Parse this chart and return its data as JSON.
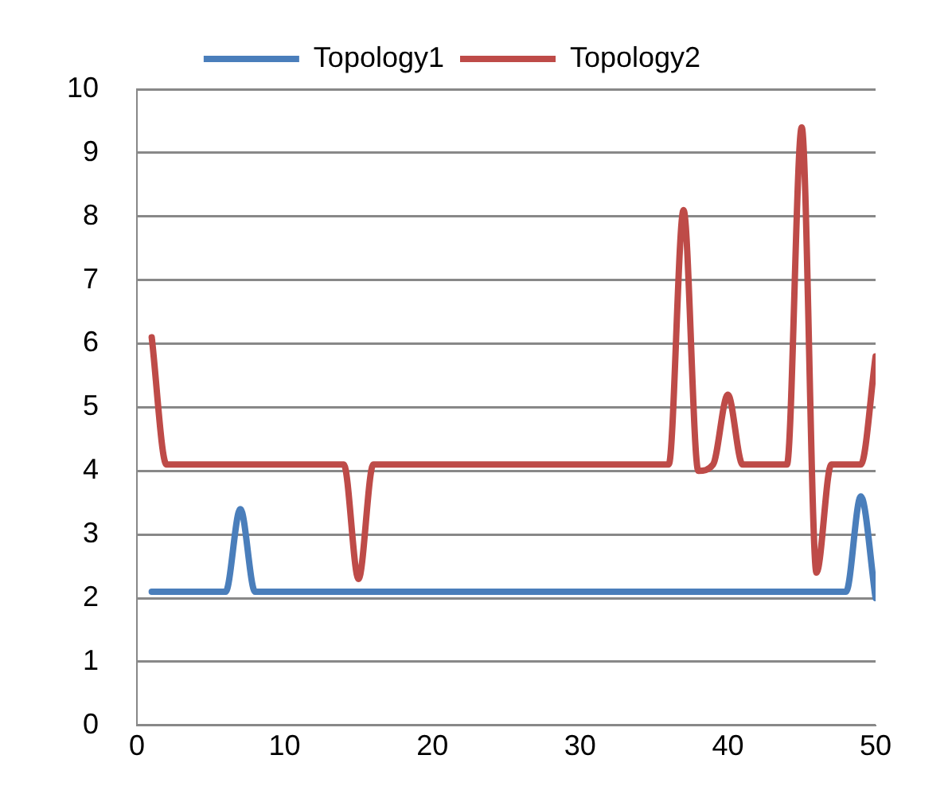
{
  "chart_data": {
    "type": "line",
    "x": [
      1,
      2,
      3,
      4,
      5,
      6,
      7,
      8,
      9,
      10,
      11,
      12,
      13,
      14,
      15,
      16,
      17,
      18,
      19,
      20,
      21,
      22,
      23,
      24,
      25,
      26,
      27,
      28,
      29,
      30,
      31,
      32,
      33,
      34,
      35,
      36,
      37,
      38,
      39,
      40,
      41,
      42,
      43,
      44,
      45,
      46,
      47,
      48,
      49,
      50
    ],
    "series": [
      {
        "name": "Topology1",
        "color": "#4a7ebb",
        "values": [
          2.1,
          2.1,
          2.1,
          2.1,
          2.1,
          2.1,
          3.4,
          2.1,
          2.1,
          2.1,
          2.1,
          2.1,
          2.1,
          2.1,
          2.1,
          2.1,
          2.1,
          2.1,
          2.1,
          2.1,
          2.1,
          2.1,
          2.1,
          2.1,
          2.1,
          2.1,
          2.1,
          2.1,
          2.1,
          2.1,
          2.1,
          2.1,
          2.1,
          2.1,
          2.1,
          2.1,
          2.1,
          2.1,
          2.1,
          2.1,
          2.1,
          2.1,
          2.1,
          2.1,
          2.1,
          2.1,
          2.1,
          2.1,
          3.6,
          2.0
        ]
      },
      {
        "name": "Topology2",
        "color": "#be4b48",
        "values": [
          6.1,
          4.1,
          4.1,
          4.1,
          4.1,
          4.1,
          4.1,
          4.1,
          4.1,
          4.1,
          4.1,
          4.1,
          4.1,
          4.1,
          2.3,
          4.1,
          4.1,
          4.1,
          4.1,
          4.1,
          4.1,
          4.1,
          4.1,
          4.1,
          4.1,
          4.1,
          4.1,
          4.1,
          4.1,
          4.1,
          4.1,
          4.1,
          4.1,
          4.1,
          4.1,
          4.1,
          8.1,
          4.0,
          4.1,
          5.2,
          4.1,
          4.1,
          4.1,
          4.1,
          9.4,
          2.4,
          4.1,
          4.1,
          4.1,
          5.8
        ]
      }
    ],
    "xlim": [
      0,
      50
    ],
    "xticks": [
      0,
      10,
      20,
      30,
      40,
      50
    ],
    "ylim": [
      0,
      10
    ],
    "yticks": [
      0,
      1,
      2,
      3,
      4,
      5,
      6,
      7,
      8,
      9,
      10
    ],
    "grid": "y",
    "legend": "top",
    "marker": "none",
    "line_style": "solid"
  }
}
